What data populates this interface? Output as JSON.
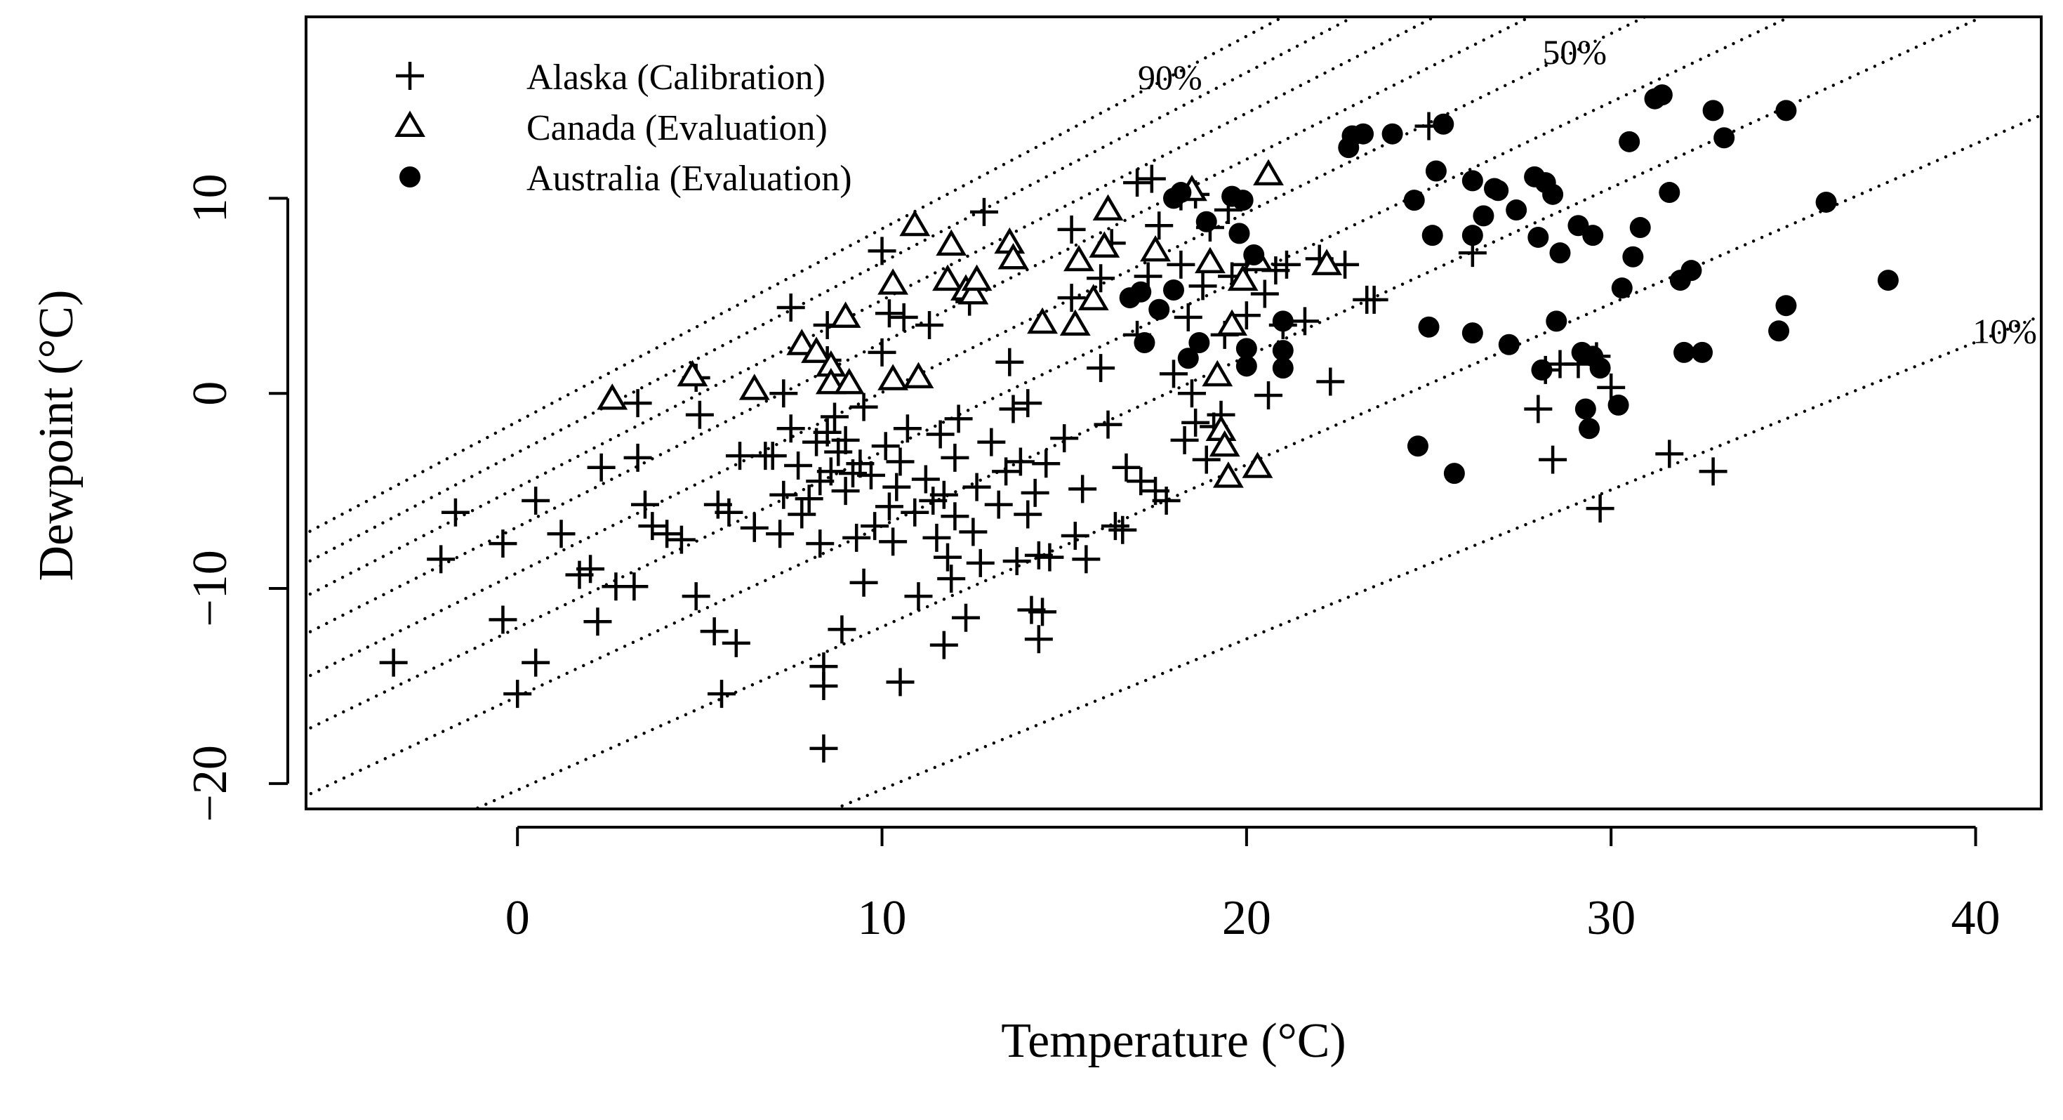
{
  "chart_data": {
    "type": "scatter",
    "title": "",
    "xlabel": "Temperature (°C)",
    "ylabel": "Dewpoint (°C)",
    "xlim": [
      -5.8,
      41.8
    ],
    "ylim": [
      -21.3,
      19.3
    ],
    "xticks": [
      0,
      10,
      20,
      30,
      40
    ],
    "yticks": [
      -20,
      -10,
      0,
      10
    ],
    "xtick_labels": [
      "0",
      "10",
      "20",
      "30",
      "40"
    ],
    "ytick_labels": [
      "−20",
      "−10",
      "0",
      "10"
    ],
    "legend": {
      "position": "top-left",
      "entries": [
        {
          "label": "Alaska (Calibration)",
          "marker": "plus"
        },
        {
          "label": "Canada (Evaluation)",
          "marker": "open-triangle"
        },
        {
          "label": "Australia (Evaluation)",
          "marker": "filled-circle"
        }
      ]
    },
    "reference_lines": {
      "style": "dotted",
      "description": "constant relative humidity curves from 10% to 90%",
      "rh_percent": [
        90,
        80,
        70,
        60,
        50,
        40,
        30,
        20,
        10
      ],
      "labels": [
        {
          "text": "90%",
          "rh": 90
        },
        {
          "text": "50%",
          "rh": 50
        },
        {
          "text": "10%",
          "rh": 10
        }
      ]
    },
    "series": [
      {
        "name": "Alaska (Calibration)",
        "marker": "plus",
        "points": [
          [
            -3.4,
            -13.8
          ],
          [
            -2.1,
            -8.5
          ],
          [
            -1.7,
            -6.1
          ],
          [
            -0.4,
            -11.6
          ],
          [
            -0.4,
            -7.7
          ],
          [
            0,
            -15.4
          ],
          [
            0.5,
            -5.5
          ],
          [
            0.5,
            -13.8
          ],
          [
            1.2,
            -7.2
          ],
          [
            1.7,
            -9.3
          ],
          [
            2,
            -9
          ],
          [
            2.2,
            -11.7
          ],
          [
            2.3,
            -3.8
          ],
          [
            2.7,
            -9.9
          ],
          [
            3.2,
            -9.9
          ],
          [
            3.3,
            -0.5
          ],
          [
            3.3,
            -3.3
          ],
          [
            3.5,
            -5.7
          ],
          [
            3.7,
            -6.8
          ],
          [
            4.1,
            -7.2
          ],
          [
            4.5,
            -7.5
          ],
          [
            4.9,
            -10.4
          ],
          [
            4.9,
            0.8
          ],
          [
            5,
            -1.1
          ],
          [
            5.4,
            -12.2
          ],
          [
            5.5,
            -5.7
          ],
          [
            5.6,
            -15.4
          ],
          [
            5.8,
            -6.1
          ],
          [
            6,
            -12.8
          ],
          [
            6.1,
            -3.2
          ],
          [
            6.5,
            -6.9
          ],
          [
            6.8,
            -3.2
          ],
          [
            7,
            -3.2
          ],
          [
            7.2,
            -7.2
          ],
          [
            7.3,
            -5.2
          ],
          [
            7.3,
            0
          ],
          [
            7.5,
            4.4
          ],
          [
            7.5,
            -1.8
          ],
          [
            7.7,
            -3.7
          ],
          [
            7.8,
            -6.2
          ],
          [
            8,
            -5.4
          ],
          [
            8.2,
            -2.5
          ],
          [
            8.3,
            -4.5
          ],
          [
            8.3,
            -7.7
          ],
          [
            8.4,
            -15
          ],
          [
            8.4,
            -14
          ],
          [
            8.4,
            -18.2
          ],
          [
            8.5,
            1.7
          ],
          [
            8.5,
            3.5
          ],
          [
            8.5,
            -2
          ],
          [
            8.6,
            -4
          ],
          [
            8.7,
            -1.2
          ],
          [
            8.8,
            -3
          ],
          [
            8.9,
            -12.1
          ],
          [
            9,
            -5
          ],
          [
            9,
            -2.4
          ],
          [
            9.2,
            -4.1
          ],
          [
            9.3,
            -7.4
          ],
          [
            9.4,
            -3.6
          ],
          [
            9.5,
            -0.7
          ],
          [
            9.5,
            -9.7
          ],
          [
            9.7,
            -4.2
          ],
          [
            9.8,
            -6.8
          ],
          [
            10,
            2.1
          ],
          [
            10,
            7.3
          ],
          [
            10.1,
            -2.7
          ],
          [
            10.2,
            4.1
          ],
          [
            10.2,
            -5.8
          ],
          [
            10.3,
            -7.6
          ],
          [
            10.4,
            -4.8
          ],
          [
            10.5,
            -3.5
          ],
          [
            10.5,
            -14.8
          ],
          [
            10.6,
            3.9
          ],
          [
            10.7,
            -1.8
          ],
          [
            10.9,
            -6.1
          ],
          [
            11,
            -10.4
          ],
          [
            11.2,
            -4.4
          ],
          [
            11.3,
            3.5
          ],
          [
            11.4,
            -5.5
          ],
          [
            11.5,
            -7.4
          ],
          [
            11.6,
            -2.1
          ],
          [
            11.7,
            -12.9
          ],
          [
            11.7,
            -5.2
          ],
          [
            11.8,
            -8.4
          ],
          [
            11.9,
            -9.5
          ],
          [
            12,
            -3.3
          ],
          [
            12,
            -6.3
          ],
          [
            12.1,
            -1.3
          ],
          [
            12.3,
            -11.5
          ],
          [
            12.4,
            4.7
          ],
          [
            12.5,
            -7.1
          ],
          [
            12.6,
            -4.8
          ],
          [
            12.7,
            -8.7
          ],
          [
            12.8,
            9.3
          ],
          [
            13,
            -2.5
          ],
          [
            13.2,
            -5.7
          ],
          [
            13.4,
            -4
          ],
          [
            13.5,
            1.6
          ],
          [
            13.6,
            -0.8
          ],
          [
            13.7,
            -8.6
          ],
          [
            13.8,
            -3.5
          ],
          [
            14,
            -6.2
          ],
          [
            14,
            -0.5
          ],
          [
            14.1,
            -11.1
          ],
          [
            14.2,
            -5.1
          ],
          [
            14.3,
            -8.3
          ],
          [
            14.3,
            -12.6
          ],
          [
            14.4,
            -11.2
          ],
          [
            14.5,
            -3.6
          ],
          [
            14.6,
            -8.4
          ],
          [
            15,
            -2.3
          ],
          [
            15.2,
            4.9
          ],
          [
            15.2,
            8.4
          ],
          [
            15.3,
            -7.3
          ],
          [
            15.5,
            -4.9
          ],
          [
            15.6,
            -8.5
          ],
          [
            16,
            1.3
          ],
          [
            16,
            5.9
          ],
          [
            16.2,
            -1.6
          ],
          [
            16.3,
            7.7
          ],
          [
            16.4,
            -6.8
          ],
          [
            16.6,
            -7
          ],
          [
            16.7,
            -3.8
          ],
          [
            17,
            3
          ],
          [
            17,
            10.8
          ],
          [
            17.1,
            -4.5
          ],
          [
            17.3,
            6
          ],
          [
            17.4,
            11
          ],
          [
            17.5,
            -5
          ],
          [
            17.6,
            8.6
          ],
          [
            17.8,
            -5.5
          ],
          [
            18,
            1
          ],
          [
            18.2,
            6.6
          ],
          [
            18.2,
            10.1
          ],
          [
            18.3,
            -2.4
          ],
          [
            18.4,
            3.9
          ],
          [
            18.5,
            0
          ],
          [
            18.6,
            10.2
          ],
          [
            18.6,
            -1.5
          ],
          [
            18.8,
            5.5
          ],
          [
            18.9,
            -3.4
          ],
          [
            19,
            8.5
          ],
          [
            19.1,
            -1.7
          ],
          [
            19.3,
            -1.1
          ],
          [
            19.4,
            3
          ],
          [
            19.5,
            9.4
          ],
          [
            19.6,
            6
          ],
          [
            20,
            4
          ],
          [
            20,
            6.6
          ],
          [
            20.5,
            5.1
          ],
          [
            20.6,
            -0.1
          ],
          [
            20.8,
            6.3
          ],
          [
            21,
            3.5
          ],
          [
            21.1,
            6.6
          ],
          [
            21.6,
            3.7
          ],
          [
            22,
            6.9
          ],
          [
            22.3,
            0.6
          ],
          [
            22.7,
            6.6
          ],
          [
            23.3,
            4.8
          ],
          [
            23.5,
            4.8
          ],
          [
            25,
            13.7
          ],
          [
            26.2,
            7.2
          ],
          [
            28,
            -0.8
          ],
          [
            28.2,
            1.2
          ],
          [
            28.4,
            -3.4
          ],
          [
            28.6,
            1.5
          ],
          [
            29.1,
            1.5
          ],
          [
            29.6,
            1.9
          ],
          [
            29.7,
            -5.9
          ],
          [
            30,
            0.3
          ],
          [
            31.6,
            -3.1
          ],
          [
            32.8,
            -4
          ]
        ]
      },
      {
        "name": "Canada (Evaluation)",
        "marker": "open-triangle",
        "points": [
          [
            2.6,
            -0.3
          ],
          [
            4.8,
            0.9
          ],
          [
            6.5,
            0.2
          ],
          [
            7.8,
            2.5
          ],
          [
            8.2,
            2.1
          ],
          [
            8.6,
            1.4
          ],
          [
            8.6,
            0.5
          ],
          [
            9,
            3.9
          ],
          [
            9.1,
            0.5
          ],
          [
            10.3,
            5.6
          ],
          [
            10.3,
            0.7
          ],
          [
            10.9,
            8.6
          ],
          [
            11,
            0.8
          ],
          [
            11.8,
            5.8
          ],
          [
            11.9,
            7.6
          ],
          [
            12.3,
            5.3
          ],
          [
            12.5,
            5.1
          ],
          [
            12.6,
            5.8
          ],
          [
            13.5,
            7.7
          ],
          [
            13.6,
            6.9
          ],
          [
            14.4,
            3.6
          ],
          [
            15.3,
            3.5
          ],
          [
            15.4,
            6.8
          ],
          [
            15.8,
            4.8
          ],
          [
            16.1,
            7.5
          ],
          [
            16.2,
            9.4
          ],
          [
            17.5,
            7.3
          ],
          [
            18.5,
            10.4
          ],
          [
            19,
            6.7
          ],
          [
            19.2,
            0.9
          ],
          [
            19.3,
            -1.9
          ],
          [
            19.4,
            -2.7
          ],
          [
            19.5,
            -4.3
          ],
          [
            19.6,
            3.5
          ],
          [
            19.9,
            5.8
          ],
          [
            20.3,
            6.8
          ],
          [
            20.3,
            -3.8
          ],
          [
            20.6,
            11.2
          ],
          [
            22.2,
            6.6
          ]
        ]
      },
      {
        "name": "Australia (Evaluation)",
        "marker": "filled-circle",
        "points": [
          [
            16.8,
            4.9
          ],
          [
            17.1,
            5.2
          ],
          [
            17.2,
            2.6
          ],
          [
            17.6,
            4.3
          ],
          [
            18,
            10
          ],
          [
            18,
            5.3
          ],
          [
            18.2,
            10.3
          ],
          [
            18.4,
            1.8
          ],
          [
            18.7,
            2.6
          ],
          [
            18.9,
            8.8
          ],
          [
            19.6,
            10.1
          ],
          [
            19.8,
            8.2
          ],
          [
            19.9,
            9.9
          ],
          [
            20,
            2.3
          ],
          [
            20,
            1.4
          ],
          [
            20.2,
            7.1
          ],
          [
            21,
            3.7
          ],
          [
            21,
            2.2
          ],
          [
            21,
            1.3
          ],
          [
            22.8,
            12.6
          ],
          [
            22.9,
            13.2
          ],
          [
            23.2,
            13.3
          ],
          [
            24,
            13.3
          ],
          [
            24.6,
            9.9
          ],
          [
            24.7,
            -2.7
          ],
          [
            25,
            3.4
          ],
          [
            25.1,
            8.1
          ],
          [
            25.2,
            11.4
          ],
          [
            25.4,
            13.8
          ],
          [
            25.7,
            -4.1
          ],
          [
            26.2,
            10.9
          ],
          [
            26.2,
            3.1
          ],
          [
            26.2,
            8.1
          ],
          [
            26.5,
            9.1
          ],
          [
            26.8,
            10.5
          ],
          [
            26.9,
            10.4
          ],
          [
            27.2,
            2.5
          ],
          [
            27.4,
            9.4
          ],
          [
            27.9,
            11.1
          ],
          [
            28,
            8
          ],
          [
            28.1,
            1.2
          ],
          [
            28.2,
            10.8
          ],
          [
            28.4,
            10.2
          ],
          [
            28.5,
            3.7
          ],
          [
            28.6,
            7.2
          ],
          [
            29.1,
            8.6
          ],
          [
            29.2,
            2.1
          ],
          [
            29.3,
            -0.8
          ],
          [
            29.4,
            -1.8
          ],
          [
            29.5,
            8.1
          ],
          [
            29.5,
            1.9
          ],
          [
            29.7,
            1.3
          ],
          [
            30.2,
            -0.6
          ],
          [
            30.3,
            5.4
          ],
          [
            30.5,
            12.9
          ],
          [
            30.6,
            7
          ],
          [
            30.8,
            8.5
          ],
          [
            31.2,
            15.1
          ],
          [
            31.4,
            15.3
          ],
          [
            31.6,
            10.3
          ],
          [
            31.9,
            5.8
          ],
          [
            32,
            2.1
          ],
          [
            32.2,
            6.3
          ],
          [
            32.5,
            2.1
          ],
          [
            32.8,
            14.5
          ],
          [
            33.1,
            13.1
          ],
          [
            34.6,
            3.2
          ],
          [
            34.8,
            14.5
          ],
          [
            34.8,
            4.5
          ],
          [
            35.9,
            9.8
          ],
          [
            37.6,
            5.8
          ]
        ]
      }
    ]
  }
}
